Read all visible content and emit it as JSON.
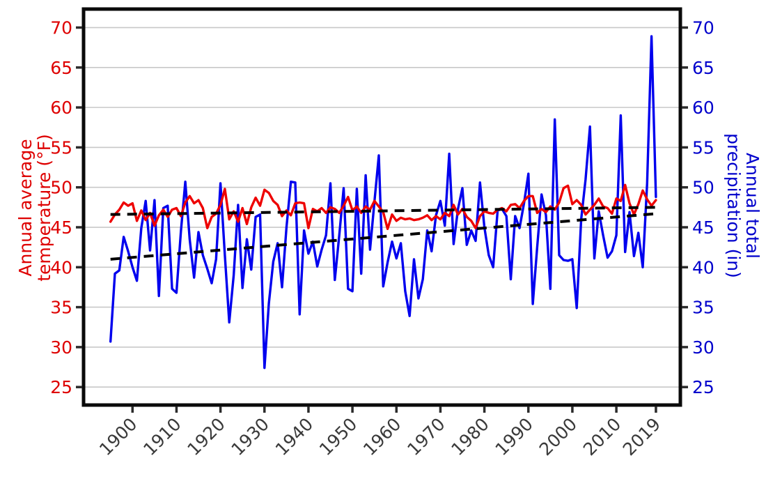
{
  "chart_data": {
    "type": "line",
    "title": "",
    "legend": "none",
    "grid": "horizontal",
    "background_color": "#ffffff",
    "gridline_color": "#c8c8c8",
    "frame_color": "#0a0a0a",
    "tick_mark_color": "#2b2b2b",
    "x_axis": {
      "year_start": 1895,
      "year_end": 2019,
      "tick_years": [
        1900,
        1910,
        1920,
        1930,
        1940,
        1950,
        1960,
        1970,
        1980,
        1990,
        2000,
        2010,
        2019
      ],
      "tick_label_color": "#3a3a3a",
      "tick_label_rotation_deg": -45
    },
    "left_axis": {
      "title_line1": "Annual average",
      "title_line2": "temperature (°F)",
      "color": "#de0000",
      "ticks": [
        25,
        30,
        35,
        40,
        45,
        50,
        55,
        60,
        65,
        70
      ],
      "range": [
        23,
        71.8
      ]
    },
    "right_axis": {
      "title_line1": "Annual total",
      "title_line2": "precipitation (in)",
      "color": "#0000cc",
      "ticks": [
        25,
        30,
        35,
        40,
        45,
        50,
        55,
        60,
        65,
        70
      ],
      "range": [
        23,
        71.8
      ]
    },
    "series": [
      {
        "name": "annual-average-temperature",
        "label": "Annual average temperature (°F)",
        "axis": "left",
        "color": "#ee0000",
        "style": "solid",
        "values": [
          45.7,
          46.6,
          47.2,
          48.1,
          47.7,
          48.0,
          45.8,
          47.1,
          45.9,
          46.8,
          45.2,
          46.5,
          47.2,
          46.3,
          47.2,
          47.4,
          46.4,
          48.1,
          48.9,
          48.0,
          48.4,
          47.4,
          44.9,
          46.3,
          46.7,
          47.8,
          49.8,
          46.0,
          47.0,
          45.7,
          47.4,
          45.4,
          47.5,
          48.7,
          47.7,
          49.7,
          49.3,
          48.3,
          47.8,
          46.4,
          47.1,
          46.5,
          48.0,
          48.1,
          48.0,
          44.9,
          47.3,
          47.0,
          47.4,
          46.8,
          47.5,
          47.3,
          46.8,
          47.7,
          48.8,
          47.1,
          47.6,
          46.8,
          47.6,
          47.2,
          48.3,
          47.6,
          46.9,
          44.8,
          46.6,
          45.8,
          46.2,
          46.0,
          46.1,
          45.9,
          46.0,
          46.2,
          46.5,
          45.9,
          46.4,
          46.0,
          46.8,
          46.4,
          47.8,
          46.6,
          47.3,
          46.3,
          45.8,
          44.9,
          46.4,
          47.0,
          46.8,
          46.7,
          47.2,
          47.4,
          47.0,
          47.8,
          47.9,
          47.4,
          48.3,
          48.9,
          48.9,
          46.8,
          47.3,
          46.9,
          47.6,
          47.2,
          48.1,
          49.9,
          50.2,
          47.9,
          48.4,
          47.8,
          46.6,
          47.2,
          47.8,
          48.6,
          47.6,
          47.4,
          46.7,
          48.6,
          48.3,
          50.3,
          48.0,
          46.6,
          47.9,
          49.6,
          48.5,
          47.7,
          48.4
        ]
      },
      {
        "name": "annual-total-precipitation",
        "label": "Annual total precipitation (in)",
        "axis": "right",
        "color": "#0000ee",
        "style": "solid",
        "values": [
          30.7,
          39.2,
          39.6,
          43.8,
          42.0,
          40.0,
          38.3,
          44.9,
          48.3,
          42.1,
          48.4,
          36.4,
          47.4,
          47.7,
          37.3,
          36.8,
          44.5,
          50.7,
          43.5,
          38.7,
          44.4,
          41.5,
          39.8,
          38.0,
          41.0,
          50.5,
          41.5,
          33.1,
          39.0,
          47.8,
          37.4,
          43.5,
          39.7,
          46.3,
          46.6,
          27.4,
          35.5,
          40.7,
          43.0,
          37.5,
          45.0,
          50.7,
          50.6,
          34.1,
          44.6,
          41.7,
          43.2,
          40.1,
          42.2,
          44.0,
          50.5,
          38.4,
          44.0,
          49.9,
          37.3,
          37.0,
          49.8,
          39.2,
          51.5,
          42.2,
          48.2,
          54.0,
          37.6,
          40.6,
          43.2,
          41.1,
          43.0,
          37.0,
          33.9,
          41.0,
          36.1,
          38.5,
          44.6,
          42.0,
          46.5,
          48.3,
          45.2,
          54.2,
          42.9,
          47.3,
          49.9,
          42.8,
          44.6,
          43.3,
          50.6,
          45.0,
          41.5,
          40.0,
          47.1,
          47.3,
          46.4,
          38.5,
          46.4,
          44.9,
          48.0,
          51.7,
          35.4,
          42.5,
          49.1,
          46.5,
          37.3,
          58.5,
          41.5,
          40.9,
          40.8,
          41.0,
          34.9,
          46.0,
          51.0,
          57.6,
          41.1,
          47.0,
          44.0,
          41.2,
          42.0,
          44.0,
          59.0,
          41.9,
          46.9,
          41.4,
          44.3,
          40.0,
          50.5,
          68.9,
          48.8
        ]
      }
    ],
    "trend_lines": [
      {
        "name": "temperature-trend",
        "color": "#000000",
        "style": "dashed",
        "year_start": 1895,
        "value_start": 46.6,
        "year_end": 2019,
        "value_end": 47.5
      },
      {
        "name": "precipitation-trend",
        "color": "#000000",
        "style": "dashed",
        "year_start": 1895,
        "value_start": 41.0,
        "year_end": 2019,
        "value_end": 46.7
      }
    ]
  }
}
